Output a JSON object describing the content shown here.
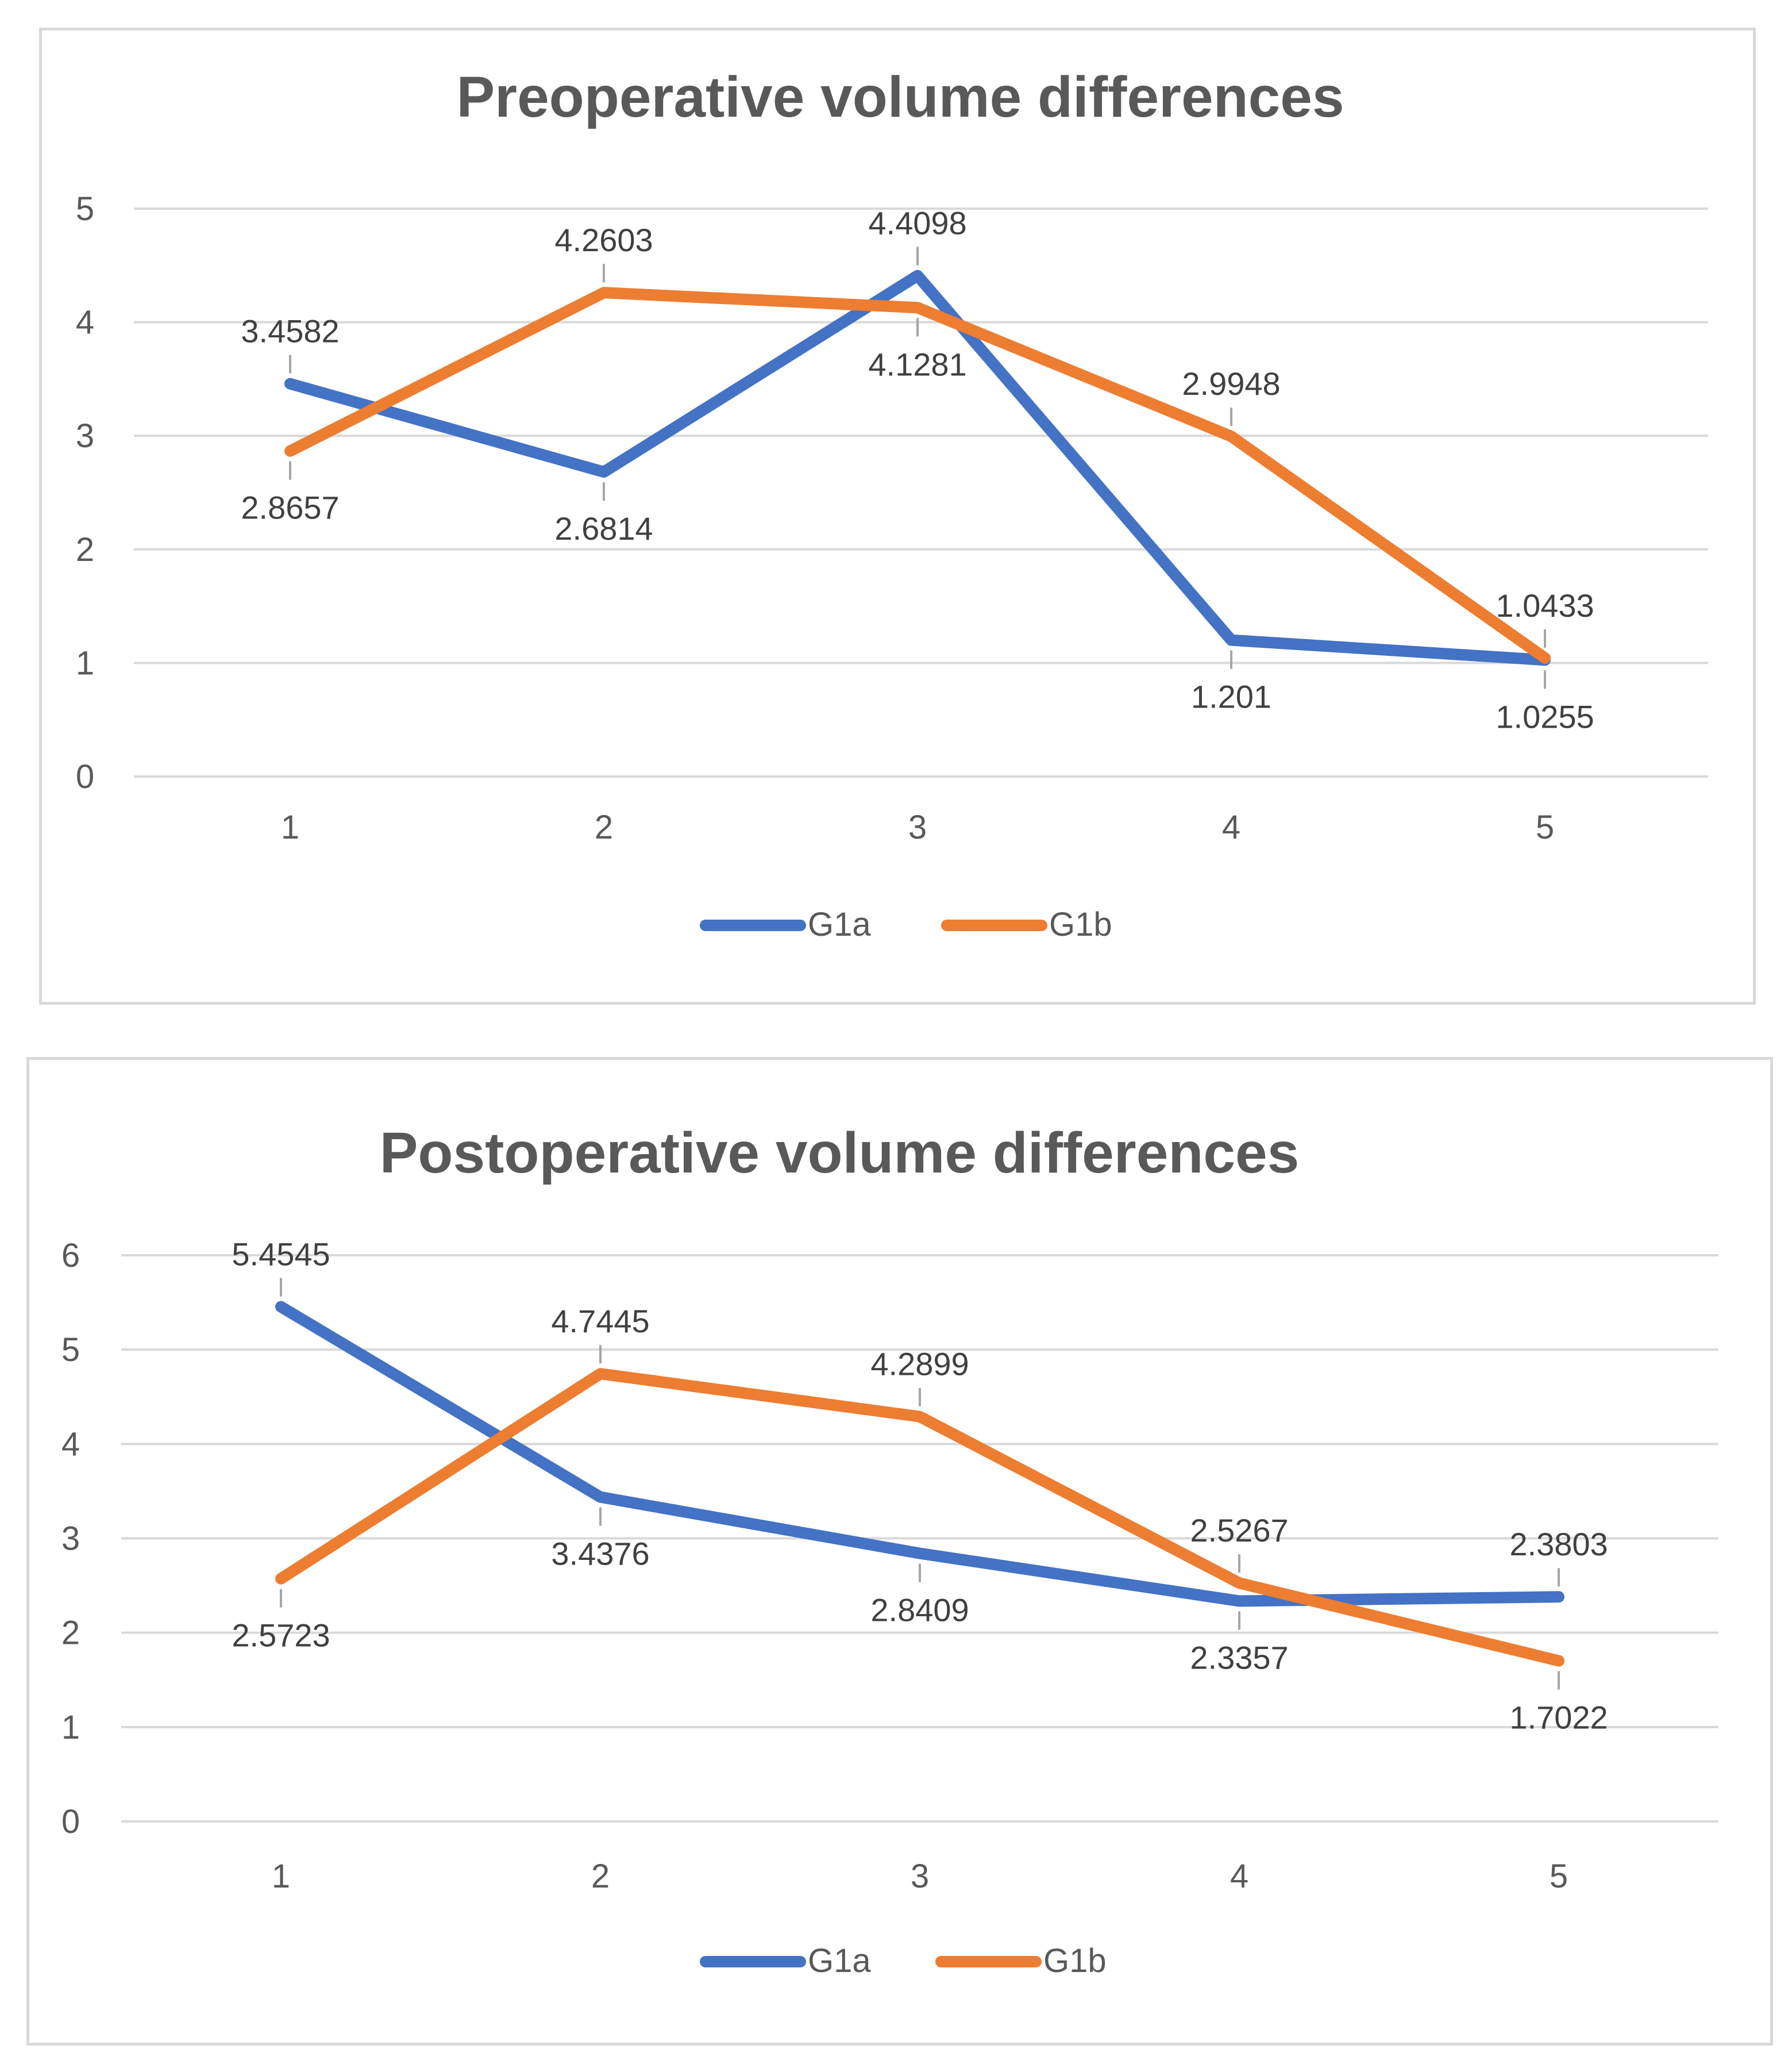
{
  "chart_data": [
    {
      "type": "line",
      "title": "Preoperative volume differences",
      "categories": [
        "1",
        "2",
        "3",
        "4",
        "5"
      ],
      "ylim": [
        0,
        5
      ],
      "yticks": [
        "0",
        "1",
        "2",
        "3",
        "4",
        "5"
      ],
      "xlabel": "",
      "ylabel": "",
      "grid": true,
      "legend": "bottom",
      "series": [
        {
          "name": "G1a",
          "color": "#4472c4",
          "values": [
            3.4582,
            2.6814,
            4.4098,
            1.201,
            1.0255
          ],
          "labels": [
            "3.4582",
            "2.6814",
            "4.4098",
            "1.201",
            "1.0255"
          ],
          "label_side": [
            "above",
            "below",
            "above",
            "below",
            "below"
          ]
        },
        {
          "name": "G1b",
          "color": "#ed7d31",
          "values": [
            2.8657,
            4.2603,
            4.1281,
            2.9948,
            1.0433
          ],
          "labels": [
            "2.8657",
            "4.2603",
            "4.1281",
            "2.9948",
            "1.0433"
          ],
          "label_side": [
            "below",
            "above",
            "below",
            "above",
            "above"
          ]
        }
      ]
    },
    {
      "type": "line",
      "title": "Postoperative volume differences",
      "categories": [
        "1",
        "2",
        "3",
        "4",
        "5"
      ],
      "ylim": [
        0,
        6
      ],
      "yticks": [
        "0",
        "1",
        "2",
        "3",
        "4",
        "5",
        "6"
      ],
      "xlabel": "",
      "ylabel": "",
      "grid": true,
      "legend": "bottom",
      "series": [
        {
          "name": "G1a",
          "color": "#4472c4",
          "values": [
            5.4545,
            3.4376,
            2.8409,
            2.3357,
            2.3803
          ],
          "labels": [
            "5.4545",
            "3.4376",
            "2.8409",
            "2.3357",
            "2.3803"
          ],
          "label_side": [
            "above",
            "below",
            "below",
            "below",
            "above"
          ]
        },
        {
          "name": "G1b",
          "color": "#ed7d31",
          "values": [
            2.5723,
            4.7445,
            4.2899,
            2.5267,
            1.7022
          ],
          "labels": [
            "2.5723",
            "4.7445",
            "4.2899",
            "2.5267",
            "1.7022"
          ],
          "label_side": [
            "below",
            "above",
            "above",
            "above",
            "below"
          ]
        }
      ]
    }
  ]
}
